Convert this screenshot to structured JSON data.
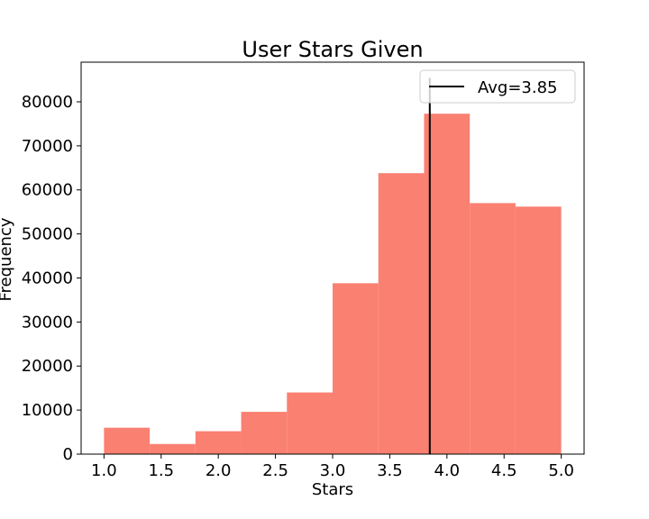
{
  "chart_data": {
    "type": "bar",
    "title": "User Stars Given",
    "xlabel": "Stars",
    "ylabel": "Frequency",
    "bin_edges": [
      1.0,
      1.4,
      1.8,
      2.2,
      2.6,
      3.0,
      3.4,
      3.8,
      4.2,
      4.6,
      5.0
    ],
    "values": [
      6000,
      2300,
      5200,
      9600,
      14000,
      38800,
      63800,
      77300,
      57000,
      56200
    ],
    "xlim": [
      0.8,
      5.2
    ],
    "ylim": [
      0,
      89000
    ],
    "xticks": [
      1.0,
      1.5,
      2.0,
      2.5,
      3.0,
      3.5,
      4.0,
      4.5,
      5.0
    ],
    "xtick_labels": [
      "1.0",
      "1.5",
      "2.0",
      "2.5",
      "3.0",
      "3.5",
      "4.0",
      "4.5",
      "5.0"
    ],
    "yticks": [
      0,
      10000,
      20000,
      30000,
      40000,
      50000,
      60000,
      70000,
      80000
    ],
    "ytick_labels": [
      "0",
      "10000",
      "20000",
      "30000",
      "40000",
      "50000",
      "60000",
      "70000",
      "80000"
    ],
    "bar_color": "#fa8072",
    "average": {
      "value": 3.85,
      "label": "Avg=3.85",
      "color": "#000000"
    },
    "legend_position": "top-right",
    "grid": false
  }
}
